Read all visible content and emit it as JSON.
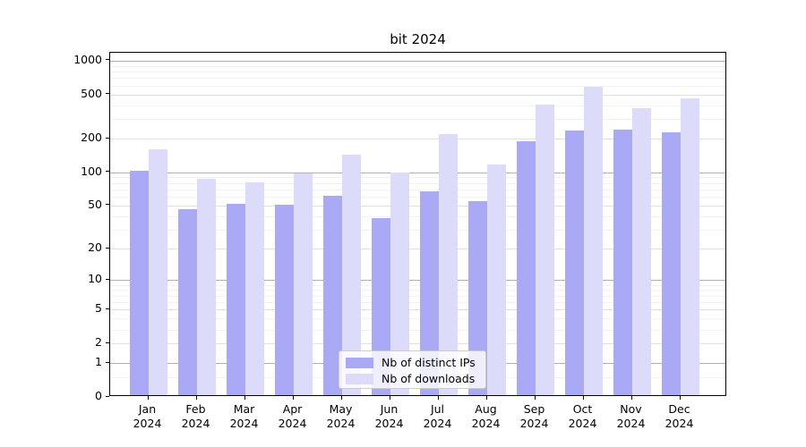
{
  "title": "bit 2024",
  "legend": {
    "items": [
      {
        "label": "Nb of distinct IPs",
        "series_key": "ips"
      },
      {
        "label": "Nb of downloads",
        "series_key": "downloads"
      }
    ]
  },
  "colors": {
    "ips": "#a9a9f6",
    "downloads": "#dcdcfa",
    "grid_decade": "#b0b0b0",
    "grid_major": "#e0e0e0",
    "grid_minor": "#f2f2f2",
    "spine": "#000000"
  },
  "chart_data": {
    "type": "bar",
    "title": "bit 2024",
    "categories": [
      "Jan",
      "Feb",
      "Mar",
      "Apr",
      "May",
      "Jun",
      "Jul",
      "Aug",
      "Sep",
      "Oct",
      "Nov",
      "Dec"
    ],
    "x_tick_second_line": "2024",
    "series": [
      {
        "name": "Nb of distinct IPs",
        "color_key": "ips",
        "values": [
          100,
          45,
          50,
          49,
          59,
          37,
          65,
          53,
          183,
          227,
          233,
          219
        ]
      },
      {
        "name": "Nb of downloads",
        "color_key": "downloads",
        "values": [
          156,
          85,
          78,
          95,
          140,
          96,
          212,
          114,
          390,
          565,
          360,
          446
        ]
      }
    ],
    "xlabel": "",
    "ylabel": "",
    "yscale": "log1p",
    "ylim": [
      0,
      1160
    ],
    "y_ticks": [
      0,
      1,
      2,
      5,
      10,
      20,
      50,
      100,
      200,
      500,
      1000
    ],
    "y_decade_ticks": [
      1,
      10,
      100,
      1000
    ],
    "y_minor_ticks": [
      0.5,
      3,
      4,
      6,
      7,
      8,
      9,
      30,
      40,
      60,
      70,
      80,
      90,
      300,
      400,
      600,
      700,
      800,
      900
    ],
    "grid": true,
    "legend_position": "lower center"
  }
}
